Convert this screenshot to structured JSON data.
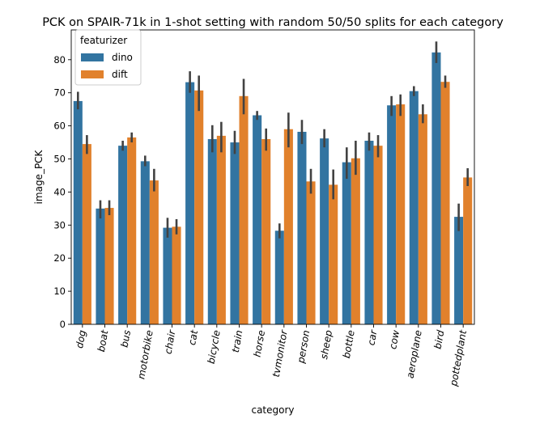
{
  "chart_data": {
    "type": "bar",
    "title": "PCK on SPAIR-71k in 1-shot setting with random 50/50 splits for each category",
    "xlabel": "category",
    "ylabel": "image_PCK",
    "ylim": [
      0,
      89
    ],
    "yticks": [
      0,
      10,
      20,
      30,
      40,
      50,
      60,
      70,
      80
    ],
    "grid": false,
    "legend": {
      "title": "featurizer",
      "position": "top-left"
    },
    "categories": [
      "dog",
      "boat",
      "bus",
      "motorbike",
      "chair",
      "cat",
      "bicycle",
      "train",
      "horse",
      "tvmonitor",
      "person",
      "sheep",
      "bottle",
      "car",
      "cow",
      "aeroplane",
      "bird",
      "pottedplant"
    ],
    "series": [
      {
        "name": "dino",
        "color": "#3274a1",
        "values": [
          67.5,
          35.0,
          54.0,
          49.3,
          29.2,
          73.2,
          56.0,
          55.0,
          63.2,
          28.3,
          58.2,
          56.2,
          49.0,
          55.5,
          66.2,
          70.5,
          82.2,
          32.5
        ],
        "ci": [
          [
            65.0,
            70.3
          ],
          [
            32.0,
            37.5
          ],
          [
            52.5,
            55.5
          ],
          [
            47.8,
            51.0
          ],
          [
            26.2,
            32.2
          ],
          [
            70.0,
            76.5
          ],
          [
            52.0,
            60.2
          ],
          [
            51.5,
            58.5
          ],
          [
            61.8,
            64.5
          ],
          [
            26.0,
            30.5
          ],
          [
            54.5,
            61.8
          ],
          [
            53.5,
            59.0
          ],
          [
            44.0,
            53.5
          ],
          [
            52.5,
            58.0
          ],
          [
            63.0,
            69.0
          ],
          [
            69.0,
            72.0
          ],
          [
            79.0,
            85.5
          ],
          [
            28.2,
            36.5
          ]
        ]
      },
      {
        "name": "dift",
        "color": "#e1812c",
        "values": [
          54.5,
          35.2,
          56.5,
          43.5,
          29.5,
          70.7,
          57.0,
          69.0,
          56.0,
          59.0,
          43.2,
          42.2,
          50.2,
          54.0,
          66.5,
          63.5,
          73.3,
          44.4
        ],
        "ci": [
          [
            51.5,
            57.2
          ],
          [
            33.0,
            37.5
          ],
          [
            55.0,
            58.0
          ],
          [
            40.2,
            47.0
          ],
          [
            27.2,
            31.8
          ],
          [
            64.5,
            75.2
          ],
          [
            52.0,
            61.2
          ],
          [
            63.5,
            74.2
          ],
          [
            52.5,
            59.2
          ],
          [
            53.5,
            64.0
          ],
          [
            39.5,
            47.0
          ],
          [
            37.8,
            46.8
          ],
          [
            45.2,
            55.5
          ],
          [
            50.5,
            57.2
          ],
          [
            63.0,
            69.5
          ],
          [
            60.8,
            66.5
          ],
          [
            71.5,
            75.2
          ],
          [
            41.8,
            47.2
          ]
        ]
      }
    ]
  }
}
